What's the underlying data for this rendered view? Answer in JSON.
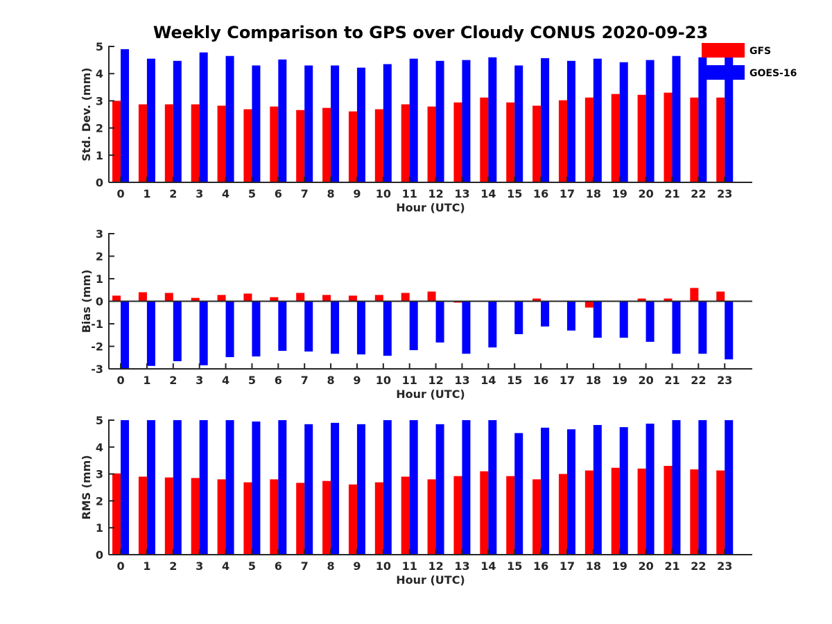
{
  "figure_title": "Weekly Comparison to GPS over Cloudy CONUS 2020-09-23",
  "colors": {
    "GFS": "#ff0000",
    "GOES-16": "#0000ff",
    "axis": "#262626"
  },
  "chart_data": [
    {
      "type": "bar",
      "title": "Weekly Comparison to GPS over Cloudy CONUS 2020-09-23",
      "xlabel": "Hour (UTC)",
      "ylabel": "Std. Dev. (mm)",
      "ylim": [
        0,
        5
      ],
      "yticks": [
        0,
        1,
        2,
        3,
        4,
        5
      ],
      "categories": [
        "0",
        "1",
        "2",
        "3",
        "4",
        "5",
        "6",
        "7",
        "8",
        "9",
        "10",
        "11",
        "12",
        "13",
        "14",
        "15",
        "16",
        "17",
        "18",
        "19",
        "20",
        "21",
        "22",
        "23"
      ],
      "legend": "top-right",
      "series": [
        {
          "name": "GFS",
          "values": [
            3.0,
            2.87,
            2.87,
            2.87,
            2.82,
            2.69,
            2.79,
            2.66,
            2.74,
            2.61,
            2.69,
            2.87,
            2.79,
            2.94,
            3.12,
            2.94,
            2.82,
            3.02,
            3.12,
            3.25,
            3.22,
            3.3,
            3.12,
            3.12
          ]
        },
        {
          "name": "GOES-16",
          "values": [
            4.9,
            4.55,
            4.47,
            4.78,
            4.65,
            4.3,
            4.52,
            4.3,
            4.3,
            4.22,
            4.35,
            4.55,
            4.47,
            4.5,
            4.6,
            4.3,
            4.57,
            4.47,
            4.55,
            4.42,
            4.5,
            4.65,
            4.6,
            4.65
          ]
        }
      ]
    },
    {
      "type": "bar",
      "xlabel": "Hour (UTC)",
      "ylabel": "Bias (mm)",
      "ylim": [
        -3,
        3
      ],
      "yticks": [
        -3,
        -2,
        -1,
        0,
        1,
        2,
        3
      ],
      "categories": [
        "0",
        "1",
        "2",
        "3",
        "4",
        "5",
        "6",
        "7",
        "8",
        "9",
        "10",
        "11",
        "12",
        "13",
        "14",
        "15",
        "16",
        "17",
        "18",
        "19",
        "20",
        "21",
        "22",
        "23"
      ],
      "series": [
        {
          "name": "GFS",
          "values": [
            0.25,
            0.4,
            0.37,
            0.15,
            0.28,
            0.34,
            0.18,
            0.37,
            0.28,
            0.25,
            0.28,
            0.37,
            0.43,
            -0.06,
            0.0,
            0.0,
            0.12,
            -0.03,
            -0.28,
            0.03,
            0.12,
            0.12,
            0.59,
            0.43
          ]
        },
        {
          "name": "GOES-16",
          "values": [
            -3.0,
            -2.87,
            -2.66,
            -2.84,
            -2.48,
            -2.45,
            -2.2,
            -2.23,
            -2.33,
            -2.36,
            -2.42,
            -2.17,
            -1.83,
            -2.33,
            -2.05,
            -1.46,
            -1.12,
            -1.3,
            -1.62,
            -1.62,
            -1.8,
            -2.33,
            -2.33,
            -2.58
          ]
        }
      ]
    },
    {
      "type": "bar",
      "xlabel": "Hour (UTC)",
      "ylabel": "RMS (mm)",
      "ylim": [
        0,
        5
      ],
      "yticks": [
        0,
        1,
        2,
        3,
        4,
        5
      ],
      "categories": [
        "0",
        "1",
        "2",
        "3",
        "4",
        "5",
        "6",
        "7",
        "8",
        "9",
        "10",
        "11",
        "12",
        "13",
        "14",
        "15",
        "16",
        "17",
        "18",
        "19",
        "20",
        "21",
        "22",
        "23"
      ],
      "series": [
        {
          "name": "GFS",
          "values": [
            3.02,
            2.9,
            2.87,
            2.85,
            2.8,
            2.69,
            2.8,
            2.67,
            2.74,
            2.61,
            2.69,
            2.9,
            2.8,
            2.92,
            3.1,
            2.92,
            2.8,
            3.0,
            3.13,
            3.23,
            3.2,
            3.3,
            3.17,
            3.13
          ]
        },
        {
          "name": "GOES-16",
          "values": [
            5.0,
            5.0,
            5.0,
            5.0,
            5.0,
            4.95,
            5.0,
            4.85,
            4.9,
            4.85,
            5.0,
            5.0,
            4.85,
            5.0,
            5.0,
            4.52,
            4.72,
            4.66,
            4.82,
            4.74,
            4.87,
            5.0,
            5.0,
            5.0
          ]
        }
      ]
    }
  ]
}
